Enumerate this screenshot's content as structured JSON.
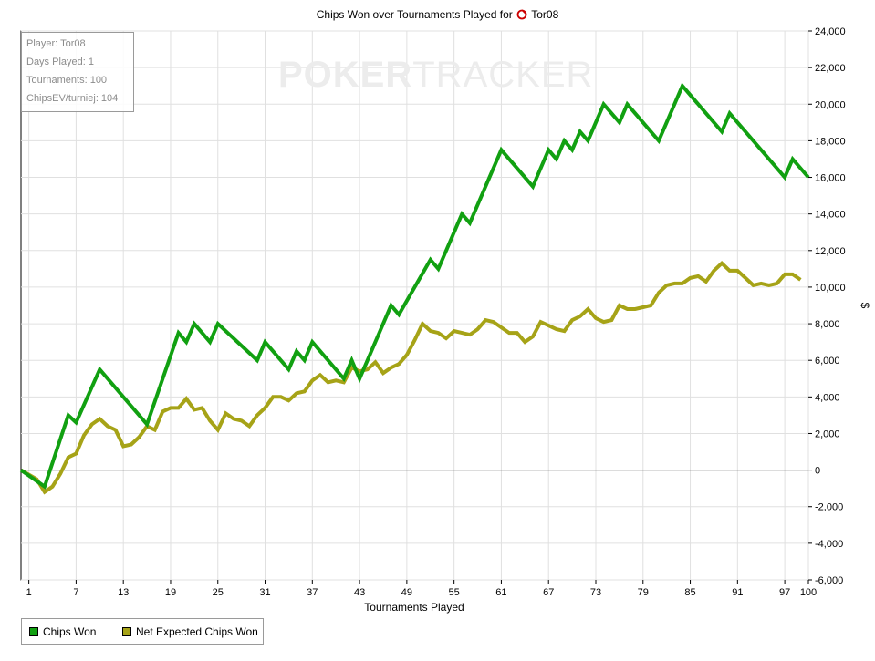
{
  "title": "Chips Won over Tournaments Played for",
  "player_label": "Tor08",
  "watermark": {
    "bold": "POKER",
    "light": "TRACKER"
  },
  "info": {
    "player": "Player: Tor08",
    "days": "Days Played: 1",
    "tournaments": "Tournaments: 100",
    "chipsev": "ChipsEV/turniej: 104"
  },
  "colors": {
    "chips_won": "#11a011",
    "net_expected": "#a6a317",
    "zero_line": "#000000",
    "grid": "#e0e0e0"
  },
  "chart_data": {
    "type": "line",
    "xlabel": "Tournaments Played",
    "ylabel": "$",
    "xlim": [
      1,
      100
    ],
    "ylim": [
      -6000,
      24000
    ],
    "grid": true,
    "legend_position": "bottom-left",
    "x_ticks": [
      1,
      7,
      13,
      19,
      25,
      31,
      37,
      43,
      49,
      55,
      61,
      67,
      73,
      79,
      85,
      91,
      97,
      100
    ],
    "y_ticks": [
      -6000,
      -4000,
      -2000,
      0,
      2000,
      4000,
      6000,
      8000,
      10000,
      12000,
      14000,
      16000,
      18000,
      20000,
      22000,
      24000
    ],
    "y_tick_labels": [
      "-6,000",
      "-4,000",
      "-2,000",
      "0",
      "2,000",
      "4,000",
      "6,000",
      "8,000",
      "10,000",
      "12,000",
      "14,000",
      "16,000",
      "18,000",
      "20,000",
      "22,000",
      "24,000"
    ],
    "series": [
      {
        "name": "Chips Won",
        "points": [
          [
            0,
            0
          ],
          [
            3,
            -900
          ],
          [
            6,
            3000
          ],
          [
            7,
            2600
          ],
          [
            10,
            5500
          ],
          [
            16,
            2500
          ],
          [
            20,
            7500
          ],
          [
            21,
            7000
          ],
          [
            22,
            8000
          ],
          [
            24,
            7000
          ],
          [
            25,
            8000
          ],
          [
            30,
            6000
          ],
          [
            31,
            7000
          ],
          [
            34,
            5500
          ],
          [
            35,
            6500
          ],
          [
            36,
            6000
          ],
          [
            37,
            7000
          ],
          [
            41,
            5000
          ],
          [
            42,
            6000
          ],
          [
            43,
            5000
          ],
          [
            47,
            9000
          ],
          [
            48,
            8500
          ],
          [
            52,
            11500
          ],
          [
            53,
            11000
          ],
          [
            56,
            14000
          ],
          [
            57,
            13500
          ],
          [
            61,
            17500
          ],
          [
            65,
            15500
          ],
          [
            67,
            17500
          ],
          [
            68,
            17000
          ],
          [
            69,
            18000
          ],
          [
            70,
            17500
          ],
          [
            71,
            18500
          ],
          [
            72,
            18000
          ],
          [
            74,
            20000
          ],
          [
            76,
            19000
          ],
          [
            77,
            20000
          ],
          [
            81,
            18000
          ],
          [
            84,
            21000
          ],
          [
            89,
            18500
          ],
          [
            90,
            19500
          ],
          [
            97,
            16000
          ],
          [
            98,
            17000
          ],
          [
            100,
            16000
          ]
        ]
      },
      {
        "name": "Net Expected Chips Won",
        "points": [
          [
            0,
            0
          ],
          [
            2,
            -500
          ],
          [
            3,
            -1200
          ],
          [
            4,
            -900
          ],
          [
            5,
            -200
          ],
          [
            6,
            700
          ],
          [
            7,
            900
          ],
          [
            8,
            1900
          ],
          [
            9,
            2500
          ],
          [
            10,
            2800
          ],
          [
            11,
            2400
          ],
          [
            12,
            2200
          ],
          [
            13,
            1300
          ],
          [
            14,
            1400
          ],
          [
            15,
            1800
          ],
          [
            16,
            2400
          ],
          [
            17,
            2200
          ],
          [
            18,
            3200
          ],
          [
            19,
            3400
          ],
          [
            20,
            3400
          ],
          [
            21,
            3900
          ],
          [
            22,
            3300
          ],
          [
            23,
            3400
          ],
          [
            24,
            2700
          ],
          [
            25,
            2200
          ],
          [
            26,
            3100
          ],
          [
            27,
            2800
          ],
          [
            28,
            2700
          ],
          [
            29,
            2400
          ],
          [
            30,
            3000
          ],
          [
            31,
            3400
          ],
          [
            32,
            4000
          ],
          [
            33,
            4000
          ],
          [
            34,
            3800
          ],
          [
            35,
            4200
          ],
          [
            36,
            4300
          ],
          [
            37,
            4900
          ],
          [
            38,
            5200
          ],
          [
            39,
            4800
          ],
          [
            40,
            4900
          ],
          [
            41,
            4800
          ],
          [
            42,
            5600
          ],
          [
            43,
            5400
          ],
          [
            44,
            5500
          ],
          [
            45,
            5900
          ],
          [
            46,
            5300
          ],
          [
            47,
            5600
          ],
          [
            48,
            5800
          ],
          [
            49,
            6300
          ],
          [
            50,
            7100
          ],
          [
            51,
            8000
          ],
          [
            52,
            7600
          ],
          [
            53,
            7500
          ],
          [
            54,
            7200
          ],
          [
            55,
            7600
          ],
          [
            56,
            7500
          ],
          [
            57,
            7400
          ],
          [
            58,
            7700
          ],
          [
            59,
            8200
          ],
          [
            60,
            8100
          ],
          [
            61,
            7800
          ],
          [
            62,
            7500
          ],
          [
            63,
            7500
          ],
          [
            64,
            7000
          ],
          [
            65,
            7300
          ],
          [
            66,
            8100
          ],
          [
            67,
            7900
          ],
          [
            68,
            7700
          ],
          [
            69,
            7600
          ],
          [
            70,
            8200
          ],
          [
            71,
            8400
          ],
          [
            72,
            8800
          ],
          [
            73,
            8300
          ],
          [
            74,
            8100
          ],
          [
            75,
            8200
          ],
          [
            76,
            9000
          ],
          [
            77,
            8800
          ],
          [
            78,
            8800
          ],
          [
            79,
            8900
          ],
          [
            80,
            9000
          ],
          [
            81,
            9700
          ],
          [
            82,
            10100
          ],
          [
            83,
            10200
          ],
          [
            84,
            10200
          ],
          [
            85,
            10500
          ],
          [
            86,
            10600
          ],
          [
            87,
            10300
          ],
          [
            88,
            10900
          ],
          [
            89,
            11300
          ],
          [
            90,
            10900
          ],
          [
            91,
            10900
          ],
          [
            92,
            10500
          ],
          [
            93,
            10100
          ],
          [
            94,
            10200
          ],
          [
            95,
            10100
          ],
          [
            96,
            10200
          ],
          [
            97,
            10700
          ],
          [
            98,
            10700
          ],
          [
            99,
            10400
          ]
        ]
      }
    ]
  }
}
